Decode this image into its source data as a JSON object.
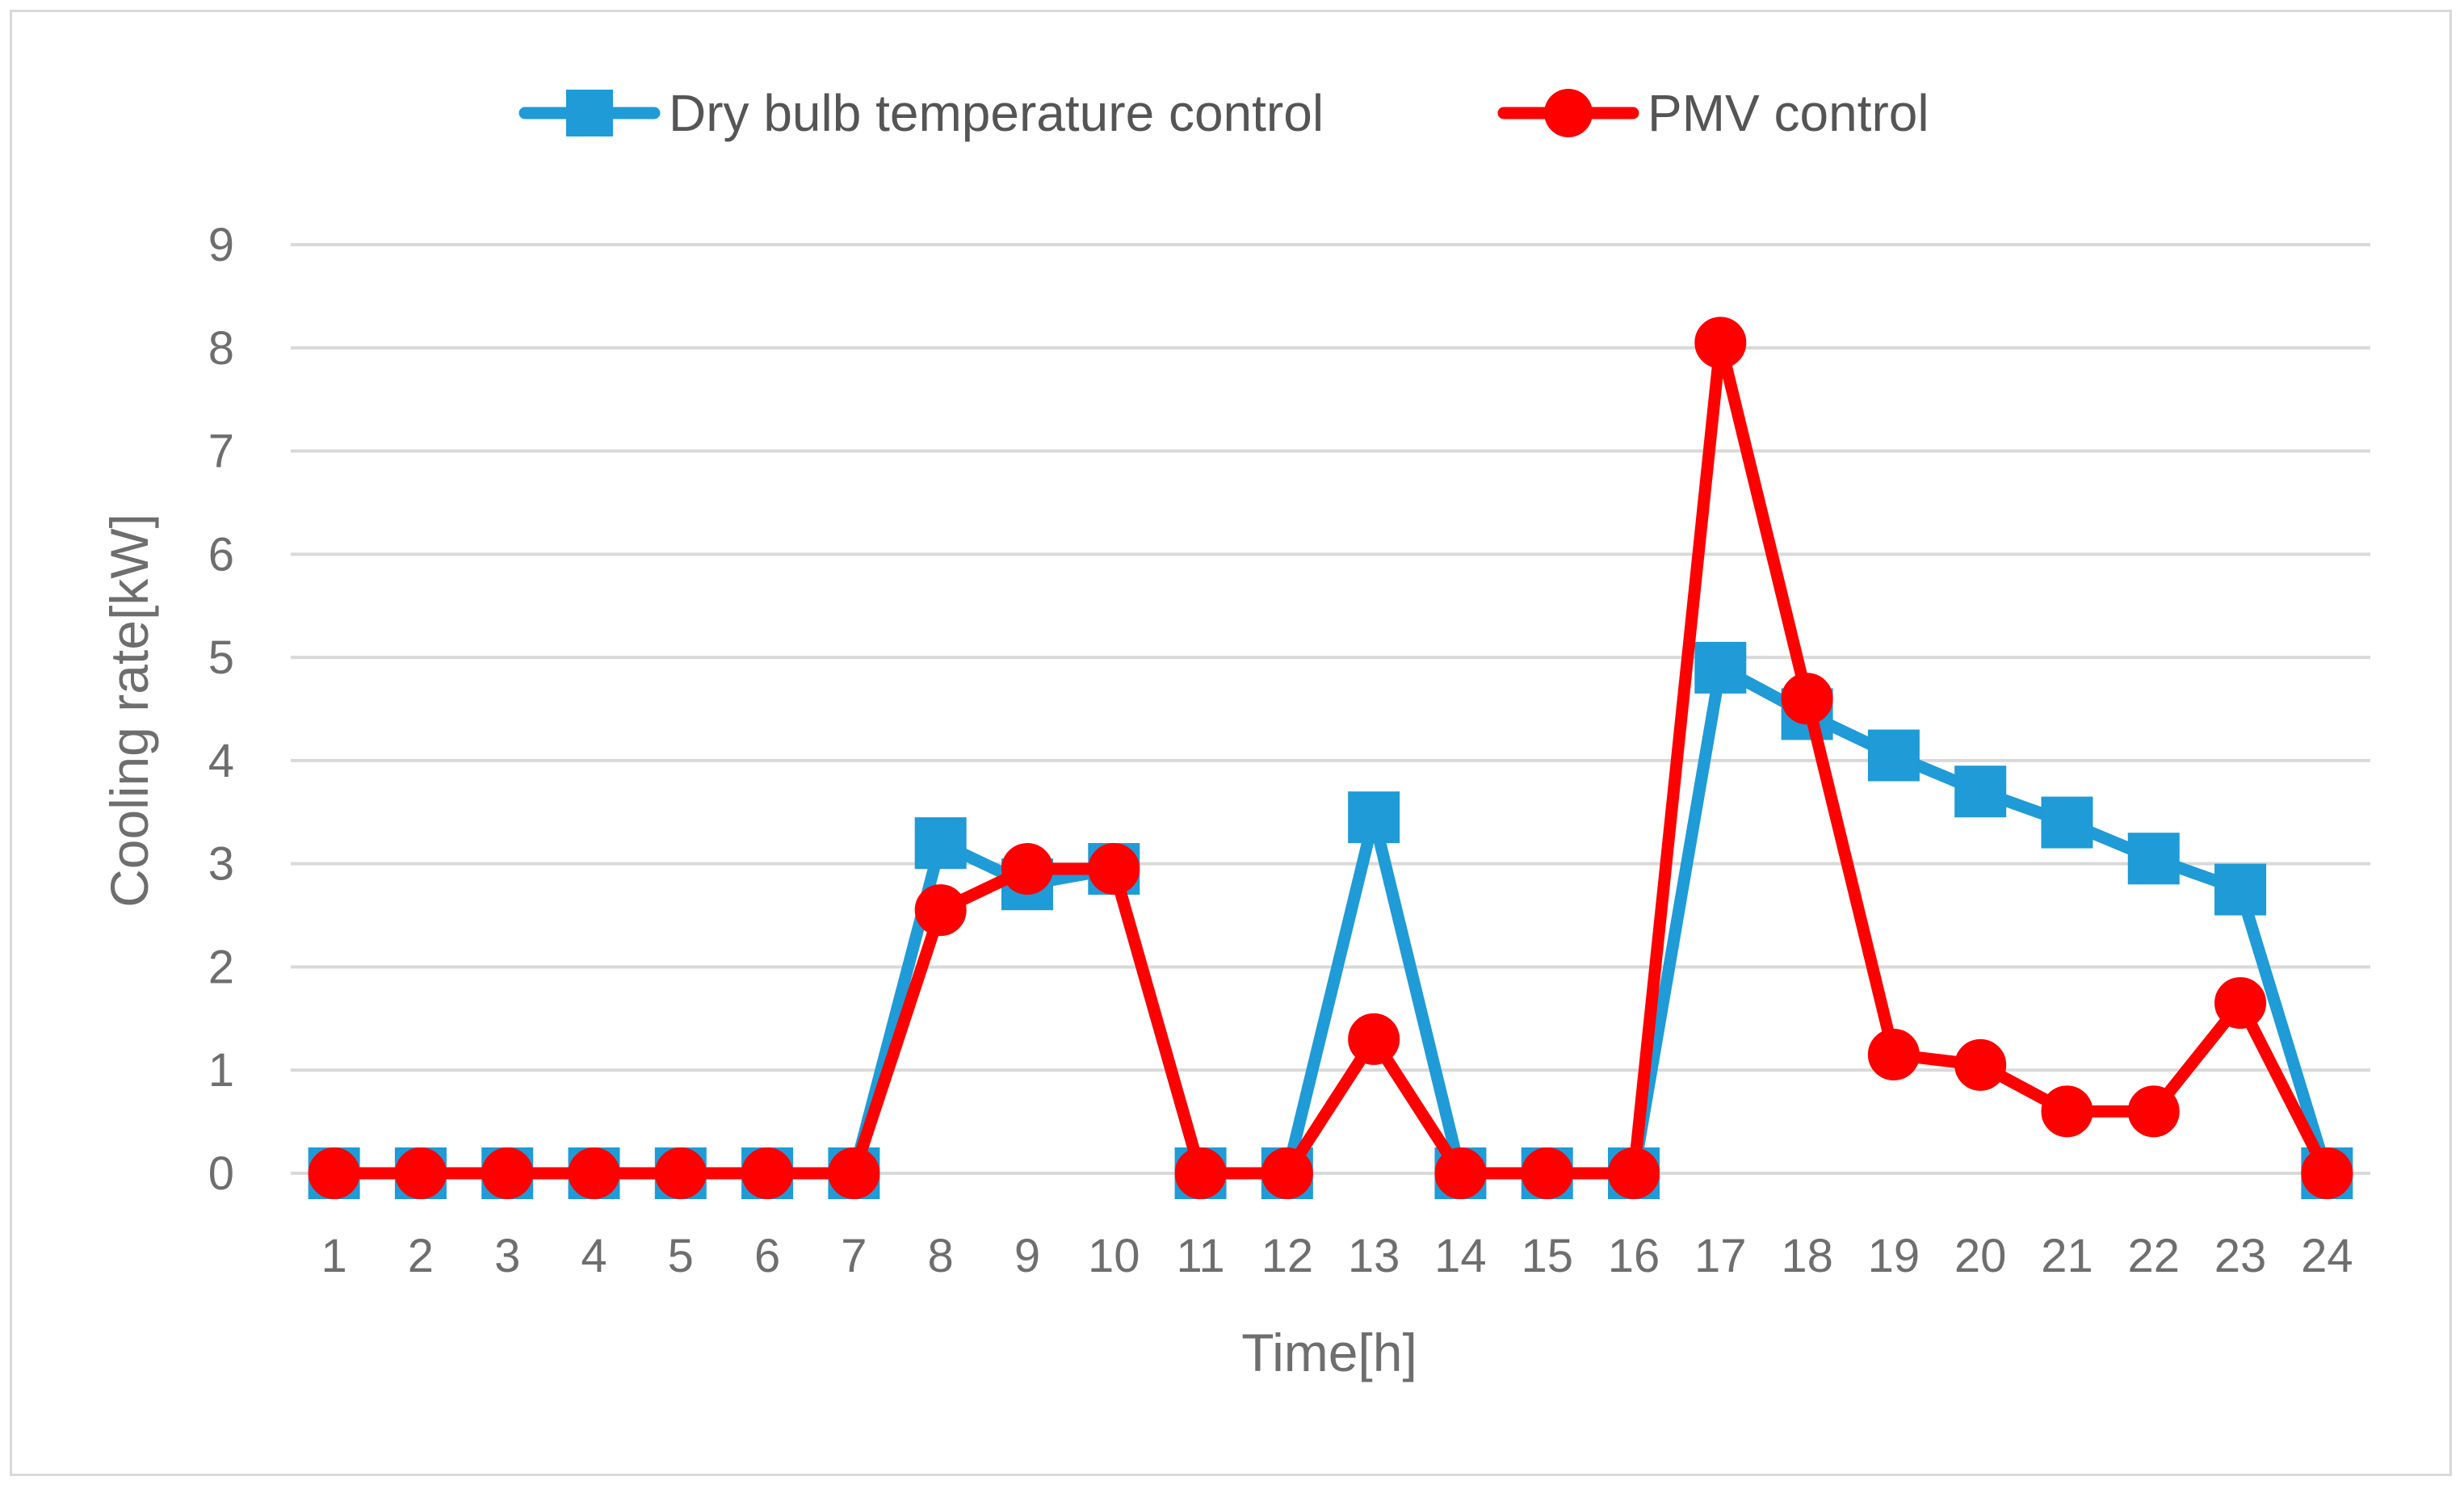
{
  "chart_data": {
    "type": "line",
    "title": "",
    "xlabel": "Time[h]",
    "ylabel": "Cooling rate[kW]",
    "ylim": [
      0,
      9
    ],
    "yticks": [
      "0",
      "1",
      "2",
      "3",
      "4",
      "5",
      "6",
      "7",
      "8",
      "9"
    ],
    "categories": [
      "1",
      "2",
      "3",
      "4",
      "5",
      "6",
      "7",
      "8",
      "9",
      "10",
      "11",
      "12",
      "13",
      "14",
      "15",
      "16",
      "17",
      "18",
      "19",
      "20",
      "21",
      "22",
      "23",
      "24"
    ],
    "grid": true,
    "legend_position": "top-center",
    "series": [
      {
        "name": "Dry bulb temperature control",
        "color": "#1f9bd7",
        "marker": "square",
        "values": [
          0,
          0,
          0,
          0,
          0,
          0,
          0,
          3.2,
          2.8,
          2.95,
          0,
          0,
          3.45,
          0,
          0,
          0,
          4.9,
          4.45,
          4.05,
          3.7,
          3.4,
          3.05,
          2.75,
          0
        ]
      },
      {
        "name": "PMV control",
        "color": "#ff0000",
        "marker": "circle",
        "values": [
          0,
          0,
          0,
          0,
          0,
          0,
          0,
          2.55,
          2.95,
          2.95,
          0,
          0,
          1.3,
          0,
          0,
          0,
          8.05,
          4.6,
          1.15,
          1.05,
          0.6,
          0.6,
          1.65,
          0
        ]
      }
    ]
  }
}
